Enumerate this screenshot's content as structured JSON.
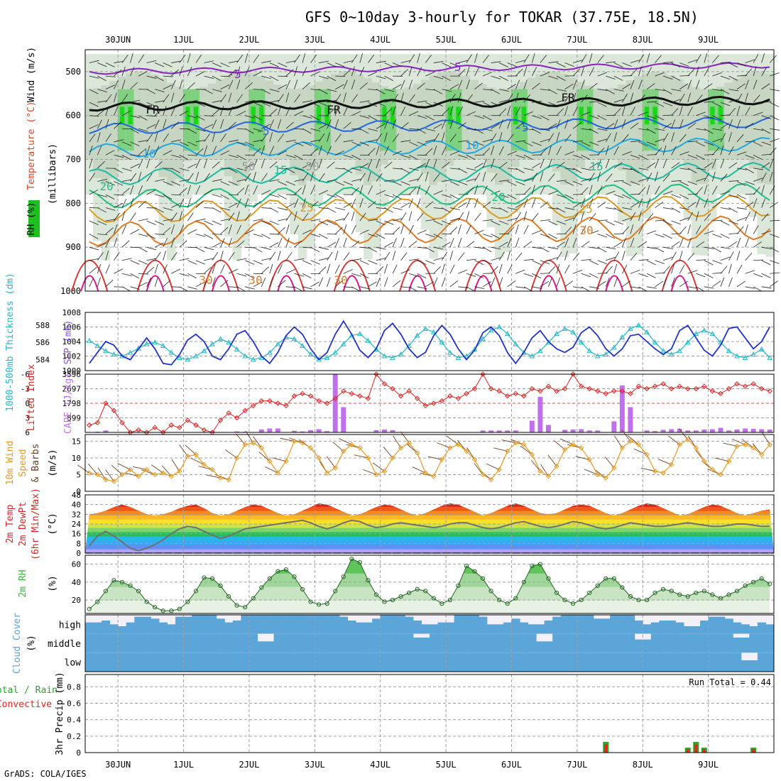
{
  "title": "GFS 0~10day 3-hourly for TOKAR (37.75E, 18.5N)",
  "footer": "GrADS: COLA/IGES",
  "colors": {
    "frame": "#000000",
    "grid": "#a0a0a0",
    "rh_green": "#1fbf1f",
    "slp": "#2233cc",
    "thickness": "#22b8c8",
    "lifted_index": "#dd2222",
    "cape": "#c070ee",
    "wind_speed": "#e89a20",
    "barbs": "#704020",
    "dewpt": "#707070",
    "rh2m_green": "#3cb43c",
    "cloud": "#5ba5d8",
    "precip_green": "#22aa22",
    "precip_red": "#ee2222"
  },
  "panels": {
    "upper": {
      "ylabel_rh": "RH (%)",
      "ylabel_temp": "Temperature (°C)",
      "ylabel_wind": "Wind (m/s)",
      "ylabel_units": "(millibars)",
      "ticks": [
        "500",
        "600",
        "700",
        "800",
        "900",
        "1000"
      ],
      "contour_labels": [
        "-5",
        "-5",
        "FR",
        "FR",
        "FR",
        "-5",
        "-5",
        "10",
        "10",
        "15",
        "15",
        "20",
        "20",
        "25",
        "25",
        "30",
        "30",
        "30",
        "30",
        "50",
        "50"
      ]
    },
    "slp": {
      "ylabel_left": "1000-500mb Thickness (dm)",
      "ylabel_right": "SLP (mb)",
      "ticks_left": [
        "584",
        "586",
        "588"
      ],
      "ticks_right": [
        "1000",
        "1002",
        "1004",
        "1006",
        "1008"
      ]
    },
    "li": {
      "ylabel_left": "Lifted Index",
      "ylabel_right": "CAPE (J/kg)",
      "ticks_left": [
        "-6",
        "-3",
        "0",
        "3",
        "6"
      ],
      "ticks_right": [
        "899",
        "1798",
        "2697",
        "3596"
      ]
    },
    "wind": {
      "ylabel_a": "10m Wind",
      "ylabel_b": "Speed",
      "ylabel_c": "& Barbs",
      "ylabel_units": "(m/s)",
      "ticks": [
        "0",
        "5",
        "10",
        "15"
      ]
    },
    "temp": {
      "ylabel_a": "2m Temp",
      "ylabel_b": "2m DewPt",
      "ylabel_c": "(6hr Min/Max)",
      "ylabel_units": "(°C)",
      "ticks": [
        "0",
        "8",
        "16",
        "24",
        "32",
        "40",
        "48"
      ]
    },
    "rh": {
      "ylabel": "2m RH",
      "ylabel_units": "(%)",
      "ticks": [
        "20",
        "40",
        "60"
      ]
    },
    "cloud": {
      "ylabel": "Cloud Cover",
      "ylabel_units": "(%)",
      "levels": [
        "high",
        "middle",
        "low"
      ]
    },
    "precip": {
      "ylabel_a": "Total / Rain",
      "ylabel_b": "Convective",
      "ylabel_units": "3hr Precip (mm)",
      "ticks": [
        "0",
        "0.2",
        "0.4",
        "0.6",
        "0.8"
      ],
      "run_total": "Run Total = 0.44"
    }
  },
  "chart_data": {
    "type": "meteogram",
    "dates": [
      "30JUN",
      "1JUL",
      "2JUL",
      "3JUL",
      "4JUL",
      "5JUL",
      "6JUL",
      "7JUL",
      "8JUL",
      "9JUL"
    ],
    "time_step_hours": 3,
    "slp_mb": [
      1001.0,
      1002.5,
      1004.0,
      1003.5,
      1002.0,
      1001.5,
      1003.0,
      1004.5,
      1003.0,
      1001.0,
      1000.8,
      1002.2,
      1004.2,
      1005.0,
      1004.0,
      1002.0,
      1001.5,
      1003.0,
      1005.0,
      1005.5,
      1004.0,
      1002.0,
      1001.0,
      1002.5,
      1004.8,
      1006.0,
      1005.0,
      1003.0,
      1001.5,
      1002.5,
      1005.0,
      1006.8,
      1005.0,
      1002.8,
      1001.8,
      1003.0,
      1005.5,
      1006.5,
      1005.0,
      1003.0,
      1001.8,
      1002.5,
      1004.8,
      1006.2,
      1005.0,
      1003.0,
      1001.5,
      1002.8,
      1005.2,
      1006.0,
      1004.8,
      1002.5,
      1001.0,
      1002.5,
      1004.5,
      1005.5,
      1004.0,
      1003.0,
      1002.5,
      1003.2,
      1005.2,
      1006.0,
      1004.8,
      1003.0,
      1002.0,
      1003.0,
      1004.8,
      1005.0,
      1004.0,
      1003.0,
      1002.2,
      1003.0,
      1005.5,
      1006.2,
      1004.5,
      1002.8,
      1002.0,
      1003.5,
      1005.8,
      1006.0,
      1004.5,
      1003.0,
      1004.0,
      1006.0
    ],
    "thickness_dm": [
      586.2,
      585.6,
      585.0,
      584.6,
      584.4,
      584.8,
      585.3,
      585.8,
      586.0,
      585.6,
      584.8,
      584.2,
      584.0,
      584.4,
      585.0,
      585.8,
      586.4,
      586.0,
      585.2,
      584.4,
      584.0,
      584.2,
      584.8,
      585.8,
      586.6,
      586.4,
      585.6,
      584.6,
      584.0,
      584.2,
      584.8,
      585.8,
      586.8,
      587.0,
      586.2,
      585.2,
      584.4,
      584.2,
      584.6,
      585.6,
      586.8,
      587.6,
      587.2,
      586.0,
      584.8,
      584.2,
      584.4,
      585.2,
      586.4,
      587.4,
      587.8,
      587.0,
      585.8,
      584.8,
      584.4,
      585.0,
      586.0,
      587.0,
      587.6,
      587.2,
      586.0,
      585.0,
      584.4,
      584.6,
      585.4,
      586.6,
      587.6,
      588.0,
      587.2,
      586.0,
      585.0,
      584.6,
      585.0,
      586.0,
      587.0,
      587.4,
      587.0,
      586.0,
      585.0,
      584.4,
      584.2,
      584.6,
      585.2,
      584.2
    ],
    "lifted_index": [
      4.5,
      4.0,
      0.0,
      1.5,
      4.0,
      6.0,
      5.5,
      6.0,
      5.0,
      6.0,
      4.5,
      5.0,
      3.5,
      4.5,
      5.5,
      6.0,
      3.5,
      2.0,
      3.0,
      1.5,
      0.5,
      -0.5,
      -0.5,
      0.0,
      0.5,
      -1.5,
      -2.0,
      -1.5,
      -0.5,
      0.0,
      -1.0,
      -2.5,
      -2.0,
      -1.5,
      -1.0,
      -6.0,
      -4.0,
      -3.0,
      -1.5,
      -2.5,
      -1.0,
      0.5,
      0.0,
      -0.5,
      -1.5,
      -1.0,
      -2.0,
      -3.0,
      -6.0,
      -3.0,
      -2.5,
      -1.5,
      -2.0,
      -1.5,
      -3.0,
      -2.5,
      -3.5,
      -2.5,
      -3.0,
      -6.0,
      -3.5,
      -3.0,
      -2.5,
      -2.0,
      -2.5,
      -2.5,
      -2.0,
      -3.5,
      -3.0,
      -3.5,
      -4.0,
      -3.0,
      -3.5,
      -3.0,
      -3.0,
      -3.5,
      -2.5,
      -2.0,
      -3.0,
      -4.0,
      -3.5,
      -4.0,
      -3.0,
      -2.5
    ],
    "cape_jkg": [
      0,
      40,
      120,
      0,
      0,
      0,
      0,
      0,
      0,
      0,
      0,
      0,
      0,
      0,
      0,
      60,
      0,
      0,
      60,
      40,
      0,
      180,
      240,
      240,
      0,
      100,
      60,
      140,
      200,
      80,
      3800,
      1560,
      0,
      0,
      0,
      140,
      180,
      140,
      0,
      0,
      0,
      0,
      0,
      0,
      0,
      0,
      0,
      0,
      120,
      120,
      120,
      120,
      120,
      0,
      720,
      2200,
      460,
      0,
      160,
      180,
      200,
      120,
      120,
      0,
      680,
      2900,
      1560,
      0,
      120,
      80,
      160,
      200,
      220,
      120,
      120,
      180,
      200,
      280,
      120,
      180,
      240,
      220,
      200,
      180
    ],
    "wind_ms": [
      5.5,
      5.0,
      3.5,
      3.0,
      5.0,
      6.5,
      4.5,
      6.5,
      5.0,
      5.5,
      4.5,
      6.0,
      10.5,
      11.0,
      8.0,
      6.5,
      4.0,
      3.5,
      10.0,
      14.0,
      14.5,
      13.0,
      9.0,
      5.5,
      9.0,
      15.0,
      14.5,
      13.0,
      10.0,
      5.5,
      7.0,
      12.0,
      14.0,
      13.0,
      10.0,
      5.0,
      6.0,
      10.0,
      13.0,
      14.5,
      11.5,
      5.5,
      4.5,
      9.5,
      13.0,
      14.0,
      12.0,
      9.5,
      5.0,
      3.5,
      6.5,
      12.0,
      14.5,
      14.0,
      11.0,
      6.0,
      4.5,
      7.5,
      12.5,
      14.0,
      13.0,
      9.5,
      5.0,
      4.0,
      7.0,
      13.0,
      15.0,
      14.0,
      11.0,
      6.0,
      5.5,
      8.0,
      14.0,
      15.5,
      13.0,
      9.0,
      6.5,
      5.0,
      9.0,
      13.5,
      14.0,
      13.0,
      11.0,
      14.0
    ],
    "temp_c": [
      32,
      33,
      35,
      38,
      40,
      38,
      35,
      32,
      31,
      32,
      34,
      37,
      39,
      40,
      37,
      33,
      31,
      32,
      35,
      38,
      40,
      39,
      36,
      33,
      31,
      32,
      35,
      38,
      41,
      40,
      37,
      34,
      31,
      32,
      35,
      38,
      40,
      39,
      36,
      33,
      31,
      33,
      36,
      39,
      41,
      40,
      37,
      34,
      31,
      33,
      36,
      39,
      41,
      39,
      36,
      33,
      32,
      33,
      36,
      39,
      40,
      39,
      36,
      33,
      31,
      33,
      36,
      39,
      41,
      40,
      37,
      34,
      31,
      32,
      35,
      38,
      40,
      39,
      36,
      33,
      31,
      33,
      35,
      36
    ],
    "dewpt_c": [
      6,
      14,
      18,
      14,
      9,
      4,
      2,
      4,
      7,
      11,
      16,
      20,
      22,
      21,
      18,
      15,
      12,
      14,
      17,
      20,
      21,
      22,
      23,
      24,
      25,
      26,
      27,
      25,
      22,
      20,
      22,
      25,
      27,
      26,
      23,
      21,
      22,
      24,
      25,
      24,
      23,
      22,
      21,
      22,
      24,
      25,
      25,
      23,
      21,
      20,
      21,
      23,
      25,
      26,
      24,
      22,
      21,
      22,
      24,
      26,
      25,
      23,
      21,
      20,
      21,
      23,
      25,
      24,
      23,
      22,
      22,
      23,
      24,
      25,
      24,
      23,
      22,
      22,
      23,
      24,
      24,
      23,
      22,
      22
    ],
    "rh2m_pct": [
      10,
      18,
      30,
      42,
      40,
      36,
      30,
      18,
      12,
      8,
      8,
      10,
      18,
      30,
      45,
      44,
      36,
      24,
      14,
      12,
      22,
      34,
      44,
      52,
      54,
      46,
      32,
      18,
      15,
      16,
      30,
      46,
      66,
      62,
      42,
      26,
      18,
      20,
      24,
      28,
      32,
      30,
      22,
      16,
      20,
      36,
      58,
      52,
      44,
      30,
      20,
      16,
      22,
      40,
      58,
      60,
      44,
      28,
      20,
      16,
      20,
      28,
      36,
      44,
      44,
      34,
      24,
      20,
      20,
      28,
      32,
      30,
      26,
      24,
      28,
      30,
      26,
      22,
      26,
      30,
      36,
      40,
      44,
      38
    ],
    "precip_total_mm": [
      0,
      0,
      0,
      0,
      0,
      0,
      0,
      0,
      0,
      0,
      0,
      0,
      0,
      0,
      0,
      0,
      0,
      0,
      0,
      0,
      0,
      0,
      0,
      0,
      0,
      0,
      0,
      0,
      0,
      0,
      0,
      0,
      0,
      0,
      0,
      0,
      0,
      0,
      0,
      0,
      0,
      0,
      0,
      0,
      0,
      0,
      0,
      0,
      0,
      0,
      0,
      0,
      0,
      0,
      0,
      0,
      0,
      0,
      0,
      0,
      0,
      0,
      0,
      0.13,
      0,
      0,
      0,
      0,
      0,
      0,
      0,
      0,
      0,
      0.06,
      0.13,
      0.06,
      0,
      0,
      0,
      0,
      0,
      0.06,
      0,
      0
    ],
    "precip_convective_mm": [
      0,
      0,
      0,
      0,
      0,
      0,
      0,
      0,
      0,
      0,
      0,
      0,
      0,
      0,
      0,
      0,
      0,
      0,
      0,
      0,
      0,
      0,
      0,
      0,
      0,
      0,
      0,
      0,
      0,
      0,
      0,
      0,
      0,
      0,
      0,
      0,
      0,
      0,
      0,
      0,
      0,
      0,
      0,
      0,
      0,
      0,
      0,
      0,
      0,
      0,
      0,
      0,
      0,
      0,
      0,
      0,
      0,
      0,
      0,
      0,
      0,
      0,
      0,
      0.1,
      0,
      0,
      0,
      0,
      0,
      0,
      0,
      0,
      0,
      0.04,
      0.1,
      0.04,
      0,
      0,
      0,
      0,
      0,
      0.04,
      0,
      0
    ],
    "cloud_high_frac": [
      0.6,
      0.6,
      0.7,
      0.5,
      0.4,
      0.6,
      0.9,
      0.9,
      0.8,
      0.6,
      0.5,
      0.9,
      0.9,
      1,
      1,
      1,
      0.8,
      0.6,
      0.7,
      1,
      1,
      1,
      1,
      1,
      1,
      1,
      1,
      1,
      1,
      1,
      1,
      0.9,
      0.7,
      0.6,
      0.6,
      0.8,
      1,
      1,
      1,
      0.9,
      0.7,
      0.5,
      0.5,
      0.6,
      0.6,
      1,
      1,
      1,
      0.9,
      0.5,
      0.5,
      0.6,
      0.8,
      0.6,
      0.5,
      0.5,
      0.7,
      0.9,
      1,
      1,
      1,
      1,
      0.8,
      0.8,
      1,
      1,
      1,
      0.7,
      0.5,
      0.6,
      0.7,
      0.7,
      0.6,
      0.4,
      0.4,
      0.7,
      0.9,
      0.9,
      0.8,
      0.6,
      0.5,
      0.4,
      0.6,
      0.5
    ],
    "cloud_middle_frac": [
      1,
      1,
      1,
      1,
      1,
      1,
      1,
      1,
      1,
      1,
      1,
      1,
      1,
      1,
      1,
      1,
      1,
      1,
      1,
      1,
      1,
      0.6,
      0.6,
      1,
      1,
      1,
      1,
      1,
      1,
      1,
      1,
      1,
      1,
      1,
      1,
      1,
      1,
      1,
      1,
      1,
      0.8,
      0.8,
      1,
      1,
      1,
      1,
      1,
      1,
      1,
      1,
      1,
      1,
      1,
      1,
      1,
      0.6,
      0.6,
      1,
      1,
      1,
      1,
      1,
      1,
      1,
      1,
      1,
      1,
      0.7,
      0.7,
      1,
      1,
      1,
      1,
      1,
      1,
      1,
      1,
      1,
      1,
      0.8,
      0.8,
      1,
      1,
      1
    ],
    "cloud_low_frac": [
      1,
      1,
      1,
      1,
      1,
      1,
      1,
      1,
      1,
      1,
      1,
      1,
      1,
      1,
      1,
      1,
      1,
      1,
      1,
      1,
      1,
      1,
      1,
      1,
      1,
      1,
      1,
      1,
      1,
      1,
      1,
      1,
      1,
      1,
      1,
      1,
      1,
      1,
      1,
      1,
      1,
      1,
      1,
      1,
      1,
      1,
      1,
      1,
      1,
      1,
      1,
      1,
      1,
      1,
      1,
      1,
      1,
      1,
      1,
      1,
      1,
      1,
      1,
      1,
      1,
      1,
      1,
      1,
      1,
      1,
      1,
      1,
      1,
      1,
      1,
      1,
      1,
      1,
      1,
      1,
      0.6,
      0.6,
      1,
      1
    ]
  }
}
